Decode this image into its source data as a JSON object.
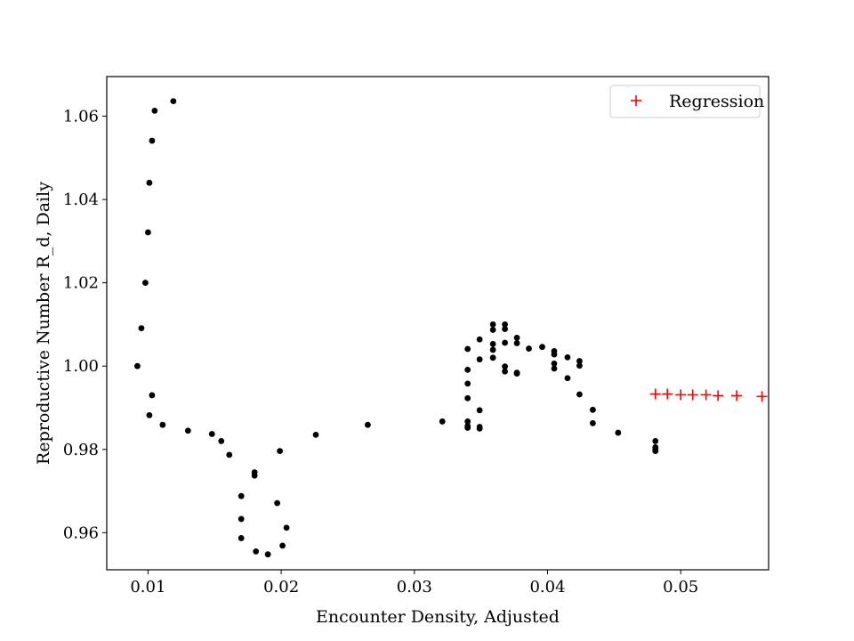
{
  "chart_data": {
    "type": "scatter",
    "title": "",
    "xlabel": "Encounter Density, Adjusted",
    "ylabel": "Reproductive Number R_d, Daily",
    "xlim": [
      0.0069,
      0.0566
    ],
    "ylim": [
      0.9511,
      1.0695
    ],
    "xticks": [
      0.01,
      0.02,
      0.03,
      0.04,
      0.05
    ],
    "xtick_labels": [
      "0.01",
      "0.02",
      "0.03",
      "0.04",
      "0.05"
    ],
    "yticks": [
      0.96,
      0.98,
      1.0,
      1.02,
      1.04,
      1.06
    ],
    "ytick_labels": [
      "0.96",
      "0.98",
      "1.00",
      "1.02",
      "1.04",
      "1.06"
    ],
    "grid": false,
    "legend_position": "top-right",
    "series": [
      {
        "marker": "dot",
        "color": "#000000",
        "points": [
          [
            0.0092,
            1.0
          ],
          [
            0.0095,
            1.0091
          ],
          [
            0.0098,
            1.02
          ],
          [
            0.01,
            1.0321
          ],
          [
            0.0101,
            1.044
          ],
          [
            0.0103,
            1.0541
          ],
          [
            0.0105,
            1.0613
          ],
          [
            0.0119,
            1.0636
          ],
          [
            0.0101,
            0.9882
          ],
          [
            0.0103,
            0.993
          ],
          [
            0.0111,
            0.9859
          ],
          [
            0.013,
            0.9845
          ],
          [
            0.0148,
            0.9837
          ],
          [
            0.0155,
            0.982
          ],
          [
            0.0161,
            0.9787
          ],
          [
            0.017,
            0.9688
          ],
          [
            0.017,
            0.9633
          ],
          [
            0.017,
            0.9587
          ],
          [
            0.018,
            0.9745
          ],
          [
            0.018,
            0.9737
          ],
          [
            0.0181,
            0.9555
          ],
          [
            0.019,
            0.9548
          ],
          [
            0.0197,
            0.9671
          ],
          [
            0.0199,
            0.9796
          ],
          [
            0.0201,
            0.9569
          ],
          [
            0.0204,
            0.9612
          ],
          [
            0.0226,
            0.9835
          ],
          [
            0.0265,
            0.9859
          ],
          [
            0.0321,
            0.9867
          ],
          [
            0.034,
            0.9867
          ],
          [
            0.034,
            0.9856
          ],
          [
            0.034,
            0.9852
          ],
          [
            0.034,
            0.9923
          ],
          [
            0.034,
            0.9958
          ],
          [
            0.034,
            0.9991
          ],
          [
            0.034,
            1.0041
          ],
          [
            0.0349,
            0.9894
          ],
          [
            0.0349,
            0.9854
          ],
          [
            0.0349,
            0.985
          ],
          [
            0.0349,
            1.0016
          ],
          [
            0.0349,
            1.0064
          ],
          [
            0.0359,
            1.01
          ],
          [
            0.0359,
            1.0087
          ],
          [
            0.0359,
            1.0053
          ],
          [
            0.0359,
            1.0039
          ],
          [
            0.0359,
            1.002
          ],
          [
            0.0368,
            1.01
          ],
          [
            0.0368,
            1.0089
          ],
          [
            0.0368,
            1.0056
          ],
          [
            0.0368,
            0.9999
          ],
          [
            0.0368,
            0.9987
          ],
          [
            0.0377,
            1.0068
          ],
          [
            0.0377,
            1.0055
          ],
          [
            0.0377,
            0.9984
          ],
          [
            0.0377,
            0.9982
          ],
          [
            0.0386,
            1.0042
          ],
          [
            0.0396,
            1.0046
          ],
          [
            0.0405,
            1.0036
          ],
          [
            0.0405,
            1.0028
          ],
          [
            0.0405,
            1.0006
          ],
          [
            0.0405,
            0.9994
          ],
          [
            0.0415,
            1.0021
          ],
          [
            0.0415,
            0.9971
          ],
          [
            0.0424,
            1.0012
          ],
          [
            0.0424,
            1.0001
          ],
          [
            0.0424,
            0.9932
          ],
          [
            0.0434,
            0.9895
          ],
          [
            0.0434,
            0.9863
          ],
          [
            0.0453,
            0.984
          ],
          [
            0.0481,
            0.982
          ],
          [
            0.0481,
            0.9805
          ],
          [
            0.0481,
            0.98
          ],
          [
            0.0481,
            0.9796
          ]
        ]
      },
      {
        "name": "Regression",
        "marker": "plus",
        "color": "#ff0000",
        "points": [
          [
            0.0481,
            0.9933
          ],
          [
            0.049,
            0.9933
          ],
          [
            0.05,
            0.9931
          ],
          [
            0.0509,
            0.9931
          ],
          [
            0.0519,
            0.9931
          ],
          [
            0.0528,
            0.9929
          ],
          [
            0.0542,
            0.9929
          ],
          [
            0.0561,
            0.9927
          ]
        ]
      }
    ]
  }
}
